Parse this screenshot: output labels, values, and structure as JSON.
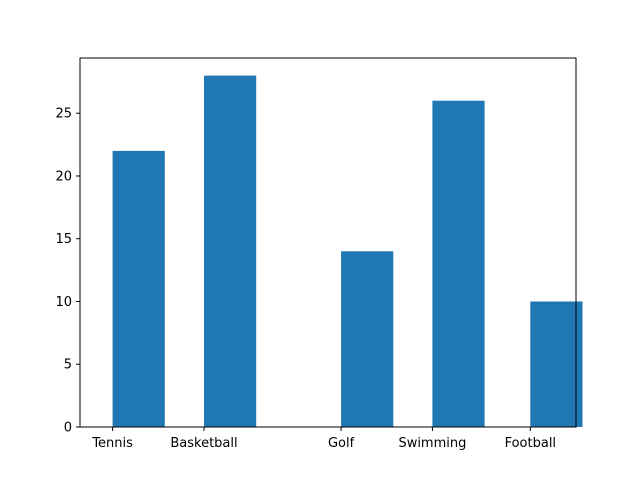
{
  "chart_data": {
    "type": "bar",
    "x": [
      0.3,
      1.0,
      2.05,
      2.75,
      3.5
    ],
    "tick_labels": [
      "Tennis",
      "Basketball",
      "Golf",
      "Swimming",
      "Football"
    ],
    "values": [
      22,
      28,
      14,
      26,
      10
    ],
    "xlim": [
      -0.15,
      3.65
    ],
    "ylim": [
      0,
      29.4
    ],
    "yticks": [
      0,
      5,
      10,
      15,
      20,
      25
    ],
    "title": "",
    "xlabel": "",
    "ylabel": "",
    "grid": false,
    "bar_color": "#1f77b4"
  }
}
